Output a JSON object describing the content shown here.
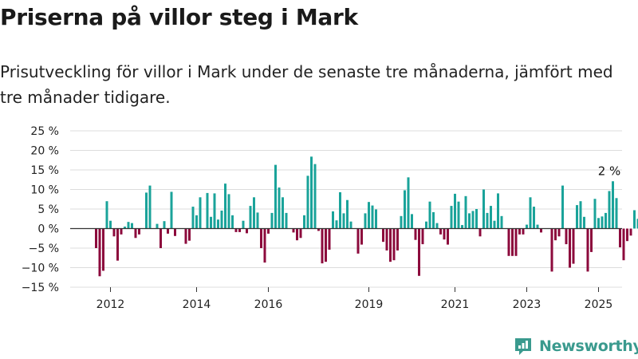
{
  "header": {
    "title": "Priserna på villor steg i Mark",
    "subtitle": "Prisutveckling för villor i Mark under de senaste tre månaderna, jämfört med tre månader tidigare."
  },
  "brand": {
    "name": "Newsworthy",
    "icon": "newsworthy-logo-icon",
    "color": "#3a9a8e"
  },
  "chart_data": {
    "type": "bar",
    "title": "Priserna på villor steg i Mark",
    "subtitle": "Prisutveckling för villor i Mark under de senaste tre månaderna, jämfört med tre månader tidigare.",
    "ylim": [
      -15,
      25
    ],
    "y_ticks": [
      25,
      20,
      15,
      10,
      5,
      0,
      -5,
      -10,
      -15
    ],
    "y_tick_labels": [
      "25 %",
      "20 %",
      "15 %",
      "10 %",
      "5 %",
      "0 %",
      "−5 %",
      "−10 %",
      "−15 %"
    ],
    "x_ticks": [
      "2012",
      "2014",
      "2016",
      "2019",
      "2021",
      "2023",
      "2025"
    ],
    "x_tick_index": [
      4,
      28,
      48,
      76,
      100,
      120,
      140
    ],
    "colors": {
      "positive": "#1aa39a",
      "negative": "#8c0a3c"
    },
    "grid": true,
    "annotation": {
      "text": "2 %",
      "index": 143
    },
    "values": [
      -5,
      -12.2,
      -10.8,
      7,
      2,
      -2,
      -8.2,
      -1.5,
      0.5,
      1.7,
      1.4,
      -2.4,
      -1.5,
      0,
      9.2,
      11,
      0,
      1.2,
      -5,
      1.9,
      -1.3,
      9.4,
      -1.9,
      0,
      0,
      -3.9,
      -3.1,
      5.6,
      3.4,
      8,
      0,
      9.1,
      3,
      9,
      2.3,
      4.6,
      11.5,
      8.8,
      3.4,
      -0.9,
      -0.9,
      2,
      -1.2,
      5.8,
      8,
      4.1,
      -5,
      -8.7,
      -1.3,
      4,
      16.3,
      10.5,
      8,
      4,
      0,
      -1,
      -3,
      -2.4,
      3.4,
      13.5,
      18.4,
      16.5,
      -0.6,
      -8.9,
      -8.5,
      -5.4,
      4.4,
      2.1,
      9.3,
      3.9,
      7.3,
      1.8,
      0,
      -6.4,
      -4.1,
      3.9,
      6.8,
      5.9,
      4.9,
      0,
      -3.4,
      -5.6,
      -8.5,
      -8.1,
      -5.6,
      3.2,
      9.8,
      13.1,
      3.7,
      -2.9,
      -12.1,
      -4,
      1.8,
      6.9,
      4.2,
      1.4,
      -1.5,
      -2.8,
      -4.1,
      5.8,
      8.9,
      6.9,
      0.9,
      8.3,
      3.9,
      4.5,
      5,
      -2,
      10,
      4,
      5.8,
      2,
      9,
      3.2,
      0,
      -7,
      -7,
      -7,
      -1.5,
      -1.5,
      1,
      8,
      5.6,
      1,
      -1,
      0,
      0,
      -11,
      -3,
      -2,
      11,
      -4,
      -10,
      -9,
      6,
      7,
      3,
      -11,
      -6,
      7.6,
      2.7,
      3.1,
      4,
      9.6,
      12.1,
      7.8,
      -4.8,
      -8.1,
      -3.2,
      -1.8,
      4.7,
      2.5,
      1.7
    ],
    "series": [
      {
        "values": "see values"
      }
    ]
  }
}
